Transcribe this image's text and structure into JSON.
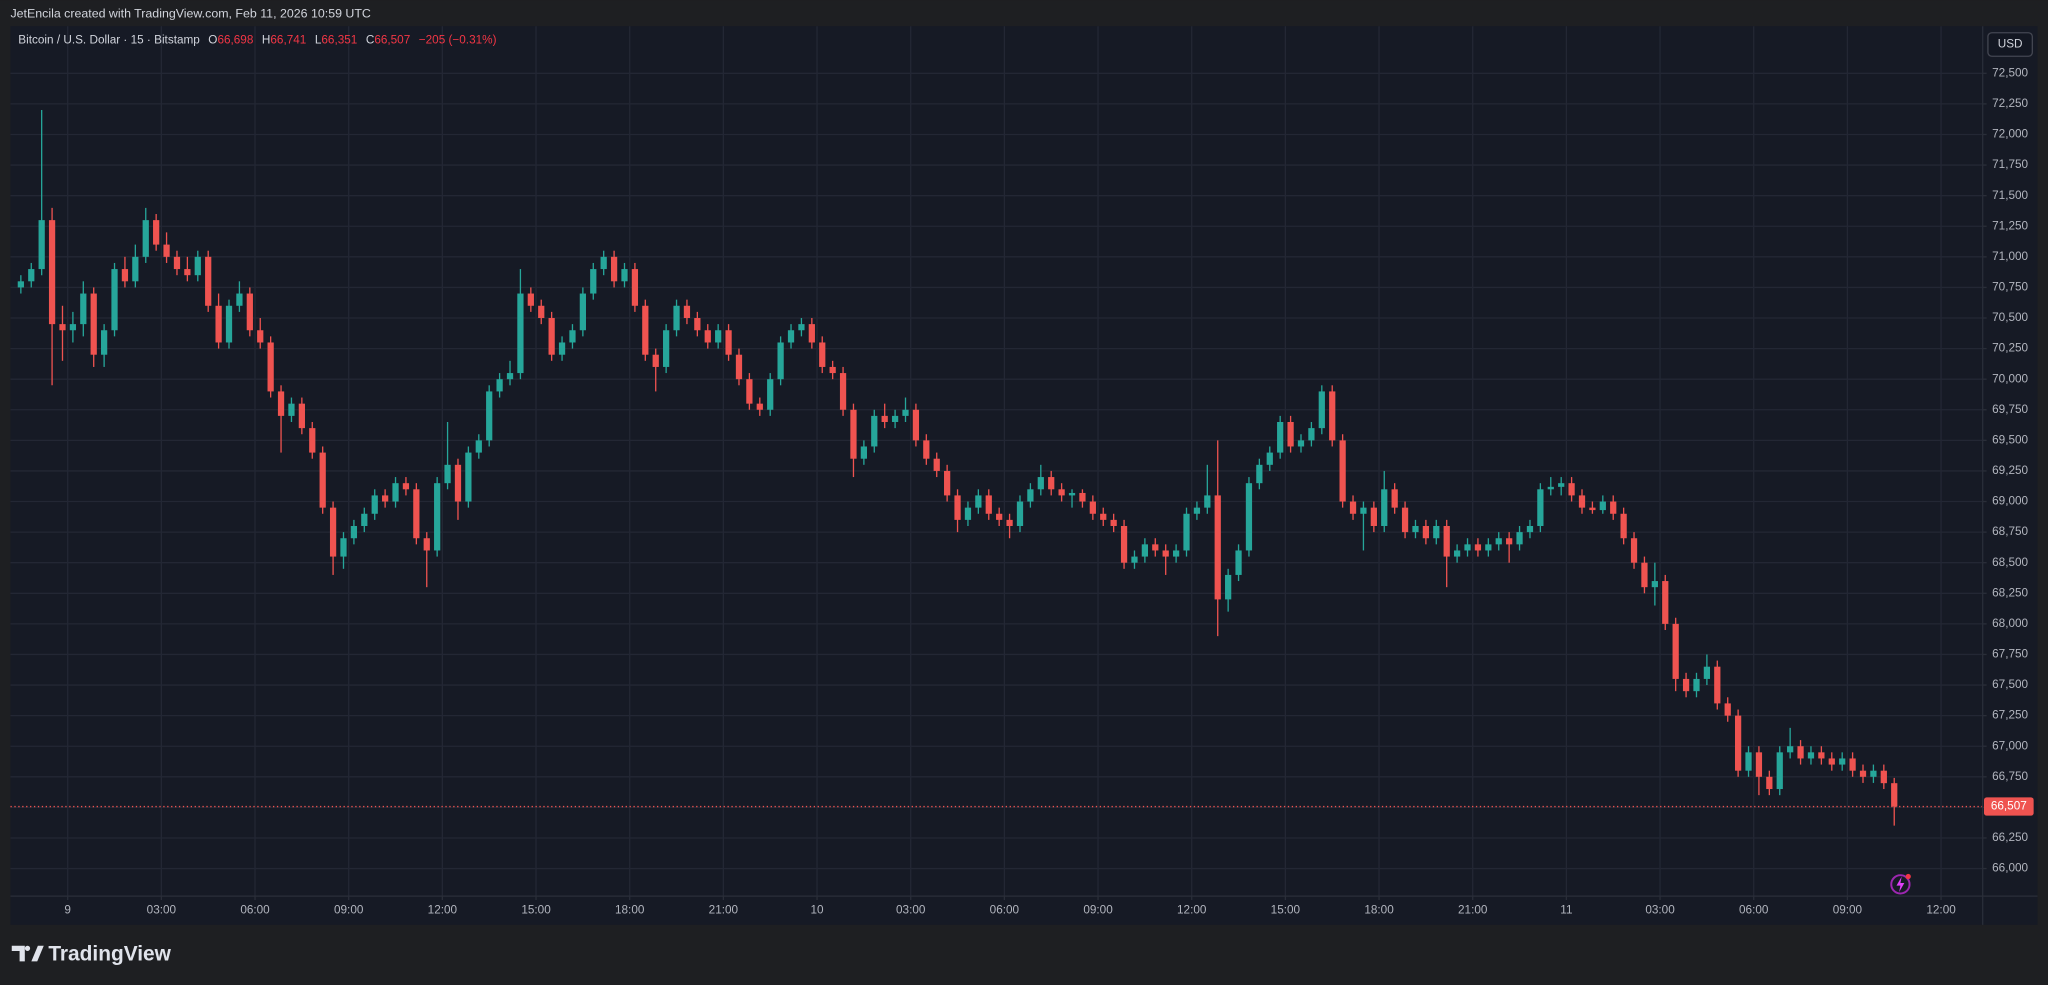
{
  "credit": "JetEncila created with TradingView.com, Feb 11, 2026 10:59 UTC",
  "footer_logo": "TradingView",
  "chart_data": {
    "type": "candlestick",
    "symbol": "Bitcoin / U.S. Dollar · 15 · Bitstamp",
    "ohlc_legend": [
      {
        "label": "O",
        "value": "66,698"
      },
      {
        "label": "H",
        "value": "66,741"
      },
      {
        "label": "L",
        "value": "66,351"
      },
      {
        "label": "C",
        "value": "66,507"
      }
    ],
    "change": "−205 (−0.31%)",
    "currency": "USD",
    "up_color": "#26a69a",
    "down_color": "#ef5350",
    "grid": true,
    "xlim": [
      -110,
      3680
    ],
    "xticks": [
      {
        "value": 0,
        "label": "9"
      },
      {
        "value": 180,
        "label": "03:00"
      },
      {
        "value": 360,
        "label": "06:00"
      },
      {
        "value": 540,
        "label": "09:00"
      },
      {
        "value": 720,
        "label": "12:00"
      },
      {
        "value": 900,
        "label": "15:00"
      },
      {
        "value": 1080,
        "label": "18:00"
      },
      {
        "value": 1260,
        "label": "21:00"
      },
      {
        "value": 1440,
        "label": "10"
      },
      {
        "value": 1620,
        "label": "03:00"
      },
      {
        "value": 1800,
        "label": "06:00"
      },
      {
        "value": 1980,
        "label": "09:00"
      },
      {
        "value": 2160,
        "label": "12:00"
      },
      {
        "value": 2340,
        "label": "15:00"
      },
      {
        "value": 2520,
        "label": "18:00"
      },
      {
        "value": 2700,
        "label": "21:00"
      },
      {
        "value": 2880,
        "label": "11"
      },
      {
        "value": 3060,
        "label": "03:00"
      },
      {
        "value": 3240,
        "label": "06:00"
      },
      {
        "value": 3420,
        "label": "09:00"
      },
      {
        "value": 3600,
        "label": "12:00"
      }
    ],
    "ylim": [
      65775,
      72885
    ],
    "yticks": [
      {
        "value": 66000,
        "label": "66,000"
      },
      {
        "value": 66250,
        "label": "66,250"
      },
      {
        "value": 66500,
        "label": "66,500"
      },
      {
        "value": 66750,
        "label": "66,750"
      },
      {
        "value": 67000,
        "label": "67,000"
      },
      {
        "value": 67250,
        "label": "67,250"
      },
      {
        "value": 67500,
        "label": "67,500"
      },
      {
        "value": 67750,
        "label": "67,750"
      },
      {
        "value": 68000,
        "label": "68,000"
      },
      {
        "value": 68250,
        "label": "68,250"
      },
      {
        "value": 68500,
        "label": "68,500"
      },
      {
        "value": 68750,
        "label": "68,750"
      },
      {
        "value": 69000,
        "label": "69,000"
      },
      {
        "value": 69250,
        "label": "69,250"
      },
      {
        "value": 69500,
        "label": "69,500"
      },
      {
        "value": 69750,
        "label": "69,750"
      },
      {
        "value": 70000,
        "label": "70,000"
      },
      {
        "value": 70250,
        "label": "70,250"
      },
      {
        "value": 70500,
        "label": "70,500"
      },
      {
        "value": 70750,
        "label": "70,750"
      },
      {
        "value": 71000,
        "label": "71,000"
      },
      {
        "value": 71250,
        "label": "71,250"
      },
      {
        "value": 71500,
        "label": "71,500"
      },
      {
        "value": 71750,
        "label": "71,750"
      },
      {
        "value": 72000,
        "label": "72,000"
      },
      {
        "value": 72250,
        "label": "72,250"
      },
      {
        "value": 72500,
        "label": "72,500"
      }
    ],
    "last_price": {
      "value": 66507,
      "label": "66,507"
    },
    "x": [
      -90,
      -70,
      -50,
      -30,
      -10,
      10,
      30,
      50,
      70,
      90,
      110,
      130,
      150,
      170,
      190,
      210,
      230,
      250,
      270,
      290,
      310,
      330,
      350,
      370,
      390,
      410,
      430,
      450,
      470,
      490,
      510,
      530,
      550,
      570,
      590,
      610,
      630,
      650,
      670,
      690,
      710,
      730,
      750,
      770,
      790,
      810,
      830,
      850,
      870,
      890,
      910,
      930,
      950,
      970,
      990,
      1010,
      1030,
      1050,
      1070,
      1090,
      1110,
      1130,
      1150,
      1170,
      1190,
      1210,
      1230,
      1250,
      1270,
      1290,
      1310,
      1330,
      1350,
      1370,
      1390,
      1410,
      1430,
      1450,
      1470,
      1490,
      1510,
      1530,
      1550,
      1570,
      1590,
      1610,
      1630,
      1650,
      1670,
      1690,
      1710,
      1730,
      1750,
      1770,
      1790,
      1810,
      1830,
      1850,
      1870,
      1890,
      1910,
      1930,
      1950,
      1970,
      1990,
      2010,
      2030,
      2050,
      2070,
      2090,
      2110,
      2130,
      2150,
      2170,
      2190,
      2210,
      2230,
      2250,
      2270,
      2290,
      2310,
      2330,
      2350,
      2370,
      2390,
      2410,
      2430,
      2450,
      2470,
      2490,
      2510,
      2530,
      2550,
      2570,
      2590,
      2610,
      2630,
      2650,
      2670,
      2690,
      2710,
      2730,
      2750,
      2770,
      2790,
      2810,
      2830,
      2850,
      2870,
      2890,
      2910,
      2930,
      2950,
      2970,
      2990,
      3010,
      3030,
      3050,
      3070,
      3090,
      3110,
      3130,
      3150,
      3170,
      3190,
      3210,
      3230,
      3250,
      3270,
      3290,
      3310,
      3330,
      3350,
      3370,
      3390,
      3410,
      3430,
      3450,
      3470,
      3490,
      3510
    ],
    "ohlc": [
      [
        70750,
        70850,
        70700,
        70800
      ],
      [
        70800,
        70950,
        70750,
        70900
      ],
      [
        70900,
        72200,
        70850,
        71300
      ],
      [
        71300,
        71400,
        69950,
        70450
      ],
      [
        70450,
        70600,
        70150,
        70400
      ],
      [
        70400,
        70550,
        70300,
        70450
      ],
      [
        70450,
        70800,
        70350,
        70700
      ],
      [
        70700,
        70750,
        70100,
        70200
      ],
      [
        70200,
        70450,
        70100,
        70400
      ],
      [
        70400,
        70950,
        70350,
        70900
      ],
      [
        70900,
        71000,
        70750,
        70800
      ],
      [
        70800,
        71100,
        70750,
        71000
      ],
      [
        71000,
        71400,
        70950,
        71300
      ],
      [
        71300,
        71350,
        71050,
        71100
      ],
      [
        71100,
        71200,
        70950,
        71000
      ],
      [
        71000,
        71050,
        70850,
        70900
      ],
      [
        70900,
        71000,
        70800,
        70850
      ],
      [
        70850,
        71050,
        70800,
        71000
      ],
      [
        71000,
        71050,
        70550,
        70600
      ],
      [
        70600,
        70700,
        70250,
        70300
      ],
      [
        70300,
        70650,
        70250,
        70600
      ],
      [
        70600,
        70800,
        70550,
        70700
      ],
      [
        70700,
        70750,
        70350,
        70400
      ],
      [
        70400,
        70500,
        70250,
        70300
      ],
      [
        70300,
        70350,
        69850,
        69900
      ],
      [
        69900,
        69950,
        69400,
        69700
      ],
      [
        69700,
        69850,
        69650,
        69800
      ],
      [
        69800,
        69850,
        69550,
        69600
      ],
      [
        69600,
        69650,
        69350,
        69400
      ],
      [
        69400,
        69450,
        68900,
        68950
      ],
      [
        68950,
        69000,
        68400,
        68550
      ],
      [
        68550,
        68750,
        68450,
        68700
      ],
      [
        68700,
        68850,
        68650,
        68800
      ],
      [
        68800,
        68950,
        68750,
        68900
      ],
      [
        68900,
        69100,
        68850,
        69050
      ],
      [
        69050,
        69100,
        68950,
        69000
      ],
      [
        69000,
        69200,
        68950,
        69150
      ],
      [
        69150,
        69200,
        69050,
        69100
      ],
      [
        69100,
        69150,
        68650,
        68700
      ],
      [
        68700,
        68750,
        68300,
        68600
      ],
      [
        68600,
        69200,
        68550,
        69150
      ],
      [
        69150,
        69650,
        69100,
        69300
      ],
      [
        69300,
        69350,
        68850,
        69000
      ],
      [
        69000,
        69450,
        68950,
        69400
      ],
      [
        69400,
        69550,
        69350,
        69500
      ],
      [
        69500,
        69950,
        69450,
        69900
      ],
      [
        69900,
        70050,
        69850,
        70000
      ],
      [
        70000,
        70150,
        69950,
        70050
      ],
      [
        70050,
        70900,
        70000,
        70700
      ],
      [
        70700,
        70750,
        70550,
        70600
      ],
      [
        70600,
        70650,
        70450,
        70500
      ],
      [
        70500,
        70550,
        70150,
        70200
      ],
      [
        70200,
        70350,
        70150,
        70300
      ],
      [
        70300,
        70450,
        70250,
        70400
      ],
      [
        70400,
        70750,
        70350,
        70700
      ],
      [
        70700,
        70950,
        70650,
        70900
      ],
      [
        70900,
        71050,
        70850,
        71000
      ],
      [
        71000,
        71050,
        70750,
        70800
      ],
      [
        70800,
        70950,
        70750,
        70900
      ],
      [
        70900,
        70950,
        70550,
        70600
      ],
      [
        70600,
        70650,
        70150,
        70200
      ],
      [
        70200,
        70250,
        69900,
        70100
      ],
      [
        70100,
        70450,
        70050,
        70400
      ],
      [
        70400,
        70650,
        70350,
        70600
      ],
      [
        70600,
        70650,
        70450,
        70500
      ],
      [
        70500,
        70550,
        70350,
        70400
      ],
      [
        70400,
        70450,
        70250,
        70300
      ],
      [
        70300,
        70450,
        70250,
        70400
      ],
      [
        70400,
        70450,
        70150,
        70200
      ],
      [
        70200,
        70250,
        69950,
        70000
      ],
      [
        70000,
        70050,
        69750,
        69800
      ],
      [
        69800,
        69850,
        69700,
        69750
      ],
      [
        69750,
        70050,
        69700,
        70000
      ],
      [
        70000,
        70350,
        69950,
        70300
      ],
      [
        70300,
        70450,
        70250,
        70400
      ],
      [
        70400,
        70500,
        70350,
        70450
      ],
      [
        70450,
        70500,
        70250,
        70300
      ],
      [
        70300,
        70350,
        70050,
        70100
      ],
      [
        70100,
        70150,
        70000,
        70050
      ],
      [
        70050,
        70100,
        69700,
        69750
      ],
      [
        69750,
        69800,
        69200,
        69350
      ],
      [
        69350,
        69500,
        69300,
        69450
      ],
      [
        69450,
        69750,
        69400,
        69700
      ],
      [
        69700,
        69800,
        69600,
        69650
      ],
      [
        69650,
        69750,
        69600,
        69700
      ],
      [
        69700,
        69850,
        69650,
        69750
      ],
      [
        69750,
        69800,
        69450,
        69500
      ],
      [
        69500,
        69550,
        69300,
        69350
      ],
      [
        69350,
        69400,
        69200,
        69250
      ],
      [
        69250,
        69300,
        69000,
        69050
      ],
      [
        69050,
        69100,
        68750,
        68850
      ],
      [
        68850,
        69000,
        68800,
        68950
      ],
      [
        68950,
        69100,
        68900,
        69050
      ],
      [
        69050,
        69100,
        68850,
        68900
      ],
      [
        68900,
        68950,
        68800,
        68850
      ],
      [
        68850,
        68900,
        68700,
        68800
      ],
      [
        68800,
        69050,
        68750,
        69000
      ],
      [
        69000,
        69150,
        68950,
        69100
      ],
      [
        69100,
        69300,
        69050,
        69200
      ],
      [
        69200,
        69250,
        69050,
        69100
      ],
      [
        69100,
        69150,
        69000,
        69050
      ],
      [
        69050,
        69100,
        68950,
        69070
      ],
      [
        69070,
        69100,
        68950,
        69000
      ],
      [
        69000,
        69050,
        68850,
        68900
      ],
      [
        68900,
        68950,
        68800,
        68850
      ],
      [
        68850,
        68900,
        68750,
        68800
      ],
      [
        68800,
        68850,
        68450,
        68500
      ],
      [
        68500,
        68600,
        68450,
        68550
      ],
      [
        68550,
        68700,
        68500,
        68650
      ],
      [
        68650,
        68700,
        68550,
        68600
      ],
      [
        68600,
        68650,
        68400,
        68550
      ],
      [
        68550,
        68650,
        68500,
        68600
      ],
      [
        68600,
        68950,
        68550,
        68900
      ],
      [
        68900,
        69000,
        68850,
        68950
      ],
      [
        68950,
        69300,
        68900,
        69050
      ],
      [
        69050,
        69500,
        67900,
        68200
      ],
      [
        68200,
        68450,
        68100,
        68400
      ],
      [
        68400,
        68650,
        68350,
        68600
      ],
      [
        68600,
        69200,
        68550,
        69150
      ],
      [
        69150,
        69350,
        69100,
        69300
      ],
      [
        69300,
        69450,
        69250,
        69400
      ],
      [
        69400,
        69700,
        69350,
        69650
      ],
      [
        69650,
        69700,
        69400,
        69450
      ],
      [
        69450,
        69550,
        69400,
        69500
      ],
      [
        69500,
        69650,
        69450,
        69600
      ],
      [
        69600,
        69950,
        69550,
        69900
      ],
      [
        69900,
        69950,
        69450,
        69500
      ],
      [
        69500,
        69550,
        68950,
        69000
      ],
      [
        69000,
        69050,
        68850,
        68900
      ],
      [
        68900,
        69000,
        68600,
        68950
      ],
      [
        68950,
        69000,
        68750,
        68800
      ],
      [
        68800,
        69250,
        68750,
        69100
      ],
      [
        69100,
        69150,
        68900,
        68950
      ],
      [
        68950,
        69000,
        68700,
        68750
      ],
      [
        68750,
        68850,
        68700,
        68800
      ],
      [
        68800,
        68850,
        68650,
        68700
      ],
      [
        68700,
        68850,
        68650,
        68800
      ],
      [
        68800,
        68850,
        68300,
        68550
      ],
      [
        68550,
        68650,
        68500,
        68600
      ],
      [
        68600,
        68700,
        68550,
        68650
      ],
      [
        68650,
        68700,
        68550,
        68600
      ],
      [
        68600,
        68700,
        68550,
        68650
      ],
      [
        68650,
        68750,
        68600,
        68700
      ],
      [
        68700,
        68750,
        68500,
        68650
      ],
      [
        68650,
        68800,
        68600,
        68750
      ],
      [
        68750,
        68850,
        68700,
        68800
      ],
      [
        68800,
        69150,
        68750,
        69100
      ],
      [
        69100,
        69200,
        69050,
        69120
      ],
      [
        69120,
        69200,
        69050,
        69150
      ],
      [
        69150,
        69200,
        69000,
        69050
      ],
      [
        69050,
        69100,
        68900,
        68950
      ],
      [
        68950,
        69000,
        68900,
        68930
      ],
      [
        68930,
        69050,
        68900,
        69000
      ],
      [
        69000,
        69050,
        68850,
        68900
      ],
      [
        68900,
        68950,
        68650,
        68700
      ],
      [
        68700,
        68750,
        68450,
        68500
      ],
      [
        68500,
        68550,
        68250,
        68300
      ],
      [
        68300,
        68500,
        68150,
        68350
      ],
      [
        68350,
        68400,
        67950,
        68000
      ],
      [
        68000,
        68050,
        67450,
        67550
      ],
      [
        67550,
        67600,
        67400,
        67450
      ],
      [
        67450,
        67600,
        67400,
        67550
      ],
      [
        67550,
        67750,
        67500,
        67650
      ],
      [
        67650,
        67700,
        67300,
        67350
      ],
      [
        67350,
        67400,
        67200,
        67250
      ],
      [
        67250,
        67300,
        66750,
        66800
      ],
      [
        66800,
        67000,
        66750,
        66950
      ],
      [
        66950,
        67000,
        66600,
        66750
      ],
      [
        66750,
        66800,
        66600,
        66650
      ],
      [
        66650,
        67000,
        66600,
        66950
      ],
      [
        66950,
        67150,
        66900,
        67000
      ],
      [
        67000,
        67050,
        66850,
        66900
      ],
      [
        66900,
        67000,
        66850,
        66950
      ],
      [
        66950,
        67000,
        66850,
        66900
      ],
      [
        66900,
        66950,
        66800,
        66850
      ],
      [
        66850,
        66950,
        66800,
        66900
      ],
      [
        66900,
        66950,
        66750,
        66800
      ],
      [
        66800,
        66850,
        66700,
        66750
      ],
      [
        66750,
        66850,
        66700,
        66800
      ],
      [
        66800,
        66850,
        66650,
        66698
      ],
      [
        66698,
        66741,
        66351,
        66507
      ]
    ]
  }
}
